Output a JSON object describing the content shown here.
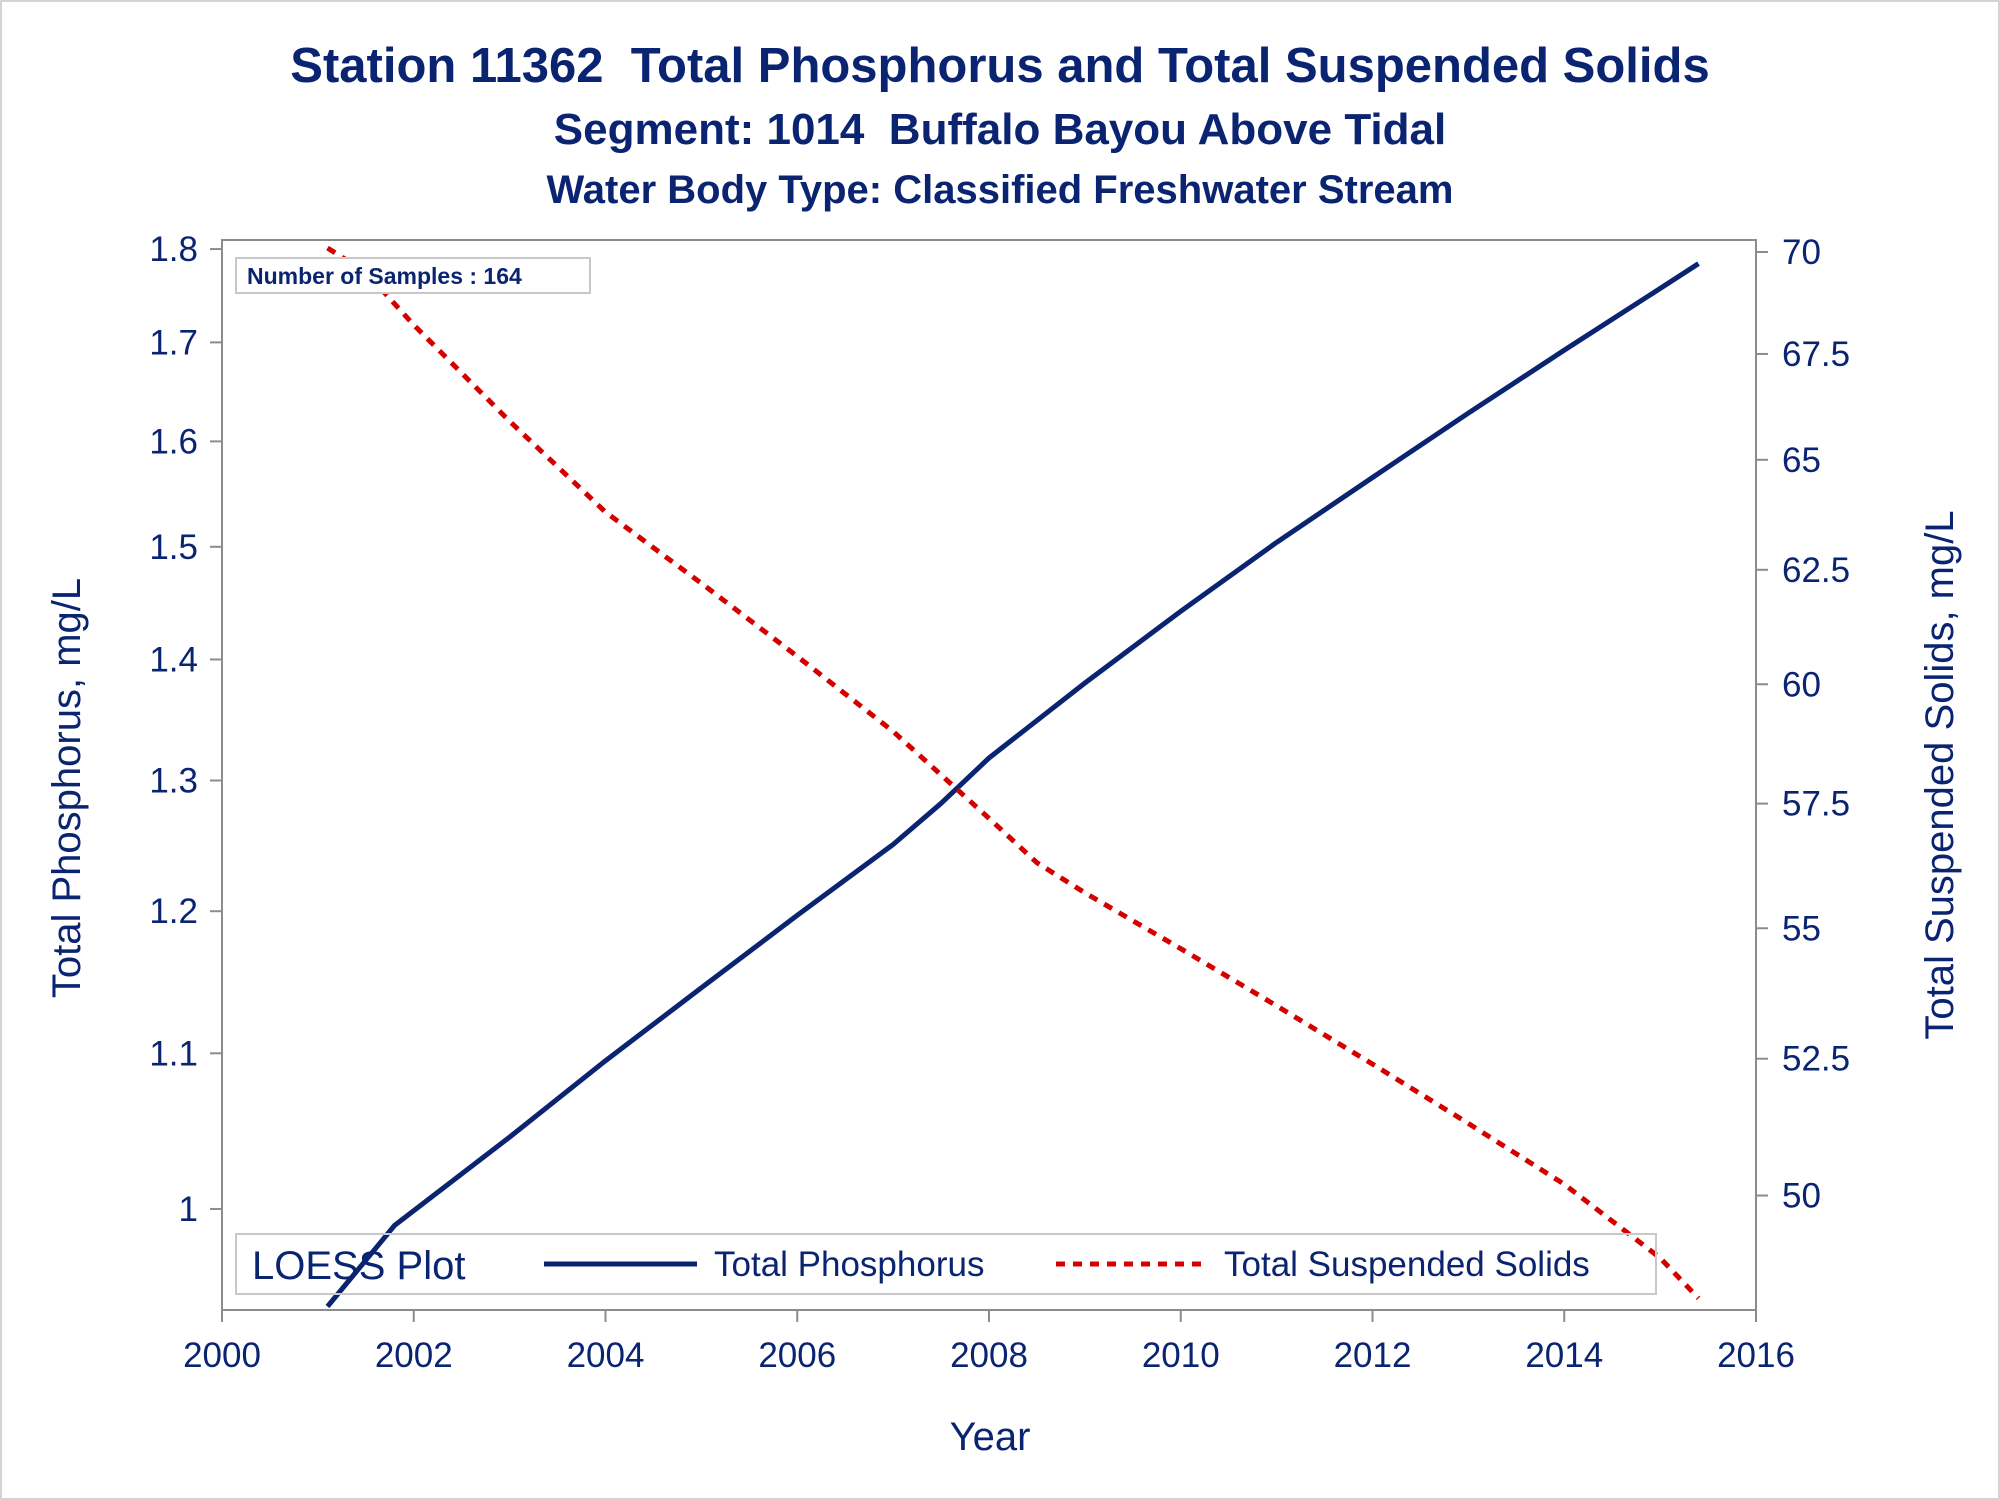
{
  "titles": {
    "main": "Station 11362  Total Phosphorus and Total Suspended Solids",
    "segment": "Segment: 1014  Buffalo Bayou Above Tidal",
    "water_body": "Water Body Type: Classified Freshwater Stream"
  },
  "inset_label": "Number of Samples : 164",
  "legend": {
    "title": "LOESS Plot",
    "entries": [
      "Total Phosphorus",
      "Total Suspended Solids"
    ]
  },
  "colors": {
    "text": "#0a2472",
    "total_phosphorus": "#0a2472",
    "total_suspended_solids": "#d40000",
    "axis": "#8c8c8c"
  },
  "chart_data": {
    "type": "line",
    "xlabel": "Year",
    "ylabel_left": "Total Phosphorus, mg/L",
    "ylabel_right": "Total Suspended Solids, mg/L",
    "xlim": [
      2000,
      2016
    ],
    "x_ticks": [
      2000,
      2002,
      2004,
      2006,
      2008,
      2010,
      2012,
      2014,
      2016
    ],
    "ylim_left": [
      0.94,
      1.81
    ],
    "y_ticks_left": [
      1,
      1.1,
      1.2,
      1.3,
      1.4,
      1.5,
      1.6,
      1.7,
      1.8
    ],
    "y_ticks_left_labels": [
      "1",
      "1.1",
      "1.2",
      "1.3",
      "1.4",
      "1.5",
      "1.6",
      "1.7",
      "1.8"
    ],
    "y_scale_left": "log",
    "ylim_right": [
      48,
      70.3
    ],
    "y_ticks_right": [
      50,
      52.5,
      55,
      57.5,
      60,
      62.5,
      65,
      67.5,
      70
    ],
    "y_ticks_right_labels": [
      "50",
      "52.5",
      "55",
      "57.5",
      "60",
      "62.5",
      "65",
      "67.5",
      "70"
    ],
    "y_scale_right": "log",
    "grid": false,
    "legend_position": "bottom-inside",
    "series": [
      {
        "name": "Total Phosphorus",
        "axis": "left",
        "style": "solid",
        "x": [
          2001.1,
          2001.8,
          2003.0,
          2004.0,
          2005.0,
          2006.0,
          2007.0,
          2007.5,
          2008.0,
          2009.0,
          2010.0,
          2011.0,
          2012.0,
          2013.0,
          2014.0,
          2015.0,
          2015.4
        ],
        "y": [
          0.942,
          0.99,
          1.045,
          1.095,
          1.145,
          1.197,
          1.25,
          1.282,
          1.318,
          1.38,
          1.442,
          1.504,
          1.565,
          1.628,
          1.692,
          1.757,
          1.784
        ]
      },
      {
        "name": "Total Suspended Solids",
        "axis": "right",
        "style": "dashed",
        "x": [
          2001.1,
          2001.5,
          2002.0,
          2003.0,
          2004.0,
          2005.0,
          2006.0,
          2007.0,
          2008.0,
          2008.5,
          2009.0,
          2010.0,
          2011.0,
          2012.0,
          2013.0,
          2014.0,
          2015.0,
          2015.4
        ],
        "y": [
          70.1,
          69.5,
          68.2,
          65.9,
          63.8,
          62.2,
          60.6,
          59.0,
          57.2,
          56.3,
          55.7,
          54.6,
          53.5,
          52.4,
          51.3,
          50.2,
          48.9,
          48.2
        ]
      }
    ]
  }
}
